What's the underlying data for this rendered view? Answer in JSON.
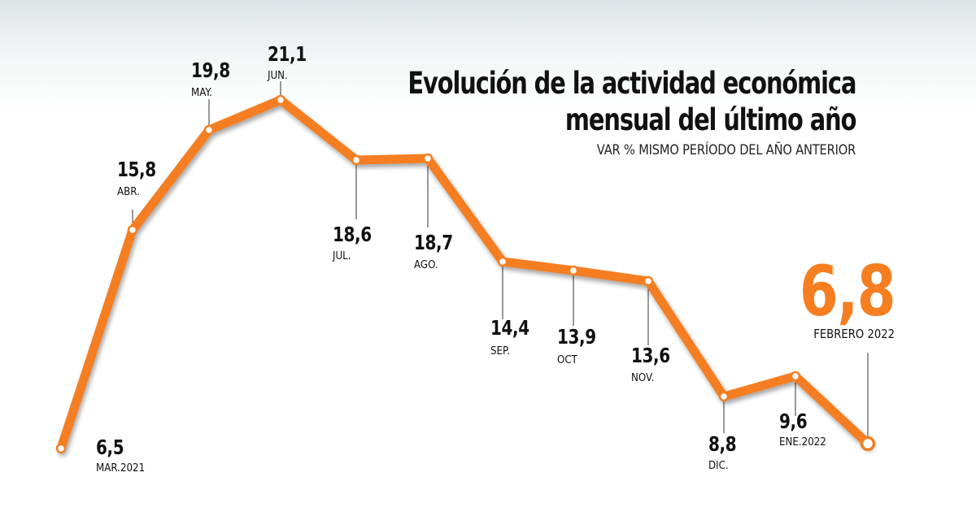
{
  "title_lines": [
    "Evolución de la actividad económica",
    "mensual del último año"
  ],
  "subtitle": "VAR % MISMO PERÍODO DEL AÑO ANTERIOR",
  "colors": {
    "line": "#f57e20",
    "text": "#111111",
    "highlight": "#f57e20"
  },
  "chart_data": {
    "type": "line",
    "title": "Evolución de la actividad económica mensual del último año",
    "subtitle": "VAR % MISMO PERÍODO DEL AÑO ANTERIOR",
    "categories": [
      "MAR.2021",
      "ABR.",
      "MAY.",
      "JUN.",
      "JUL.",
      "AGO.",
      "SEP.",
      "OCT",
      "NOV.",
      "DIC.",
      "ENE.2022",
      "FEBRERO 2022"
    ],
    "values": [
      6.5,
      15.8,
      19.8,
      21.1,
      18.6,
      18.7,
      14.4,
      13.9,
      13.6,
      8.8,
      9.6,
      6.8
    ],
    "value_labels": [
      "6,5",
      "15,8",
      "19,8",
      "21,1",
      "18,6",
      "18,7",
      "14,4",
      "13,9",
      "13,6",
      "8,8",
      "9,6",
      "6,8"
    ],
    "ylim": [
      6,
      22
    ],
    "grid": false,
    "legend": "none",
    "highlight_index": 11
  }
}
